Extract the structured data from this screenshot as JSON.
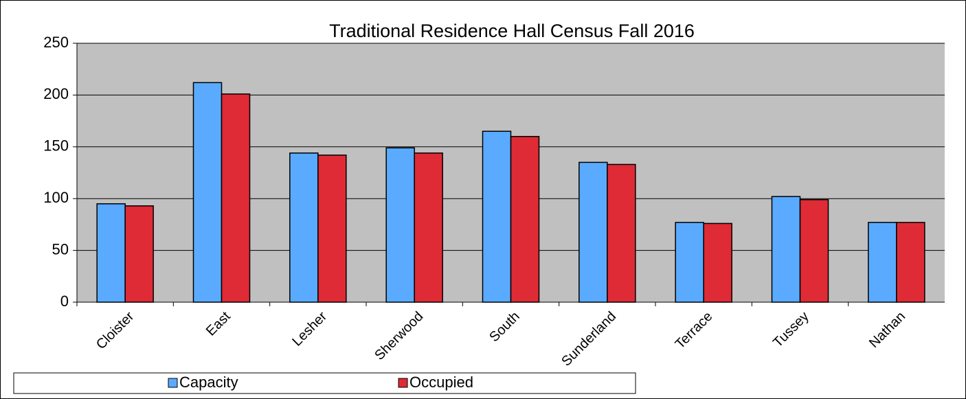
{
  "chart_data": {
    "type": "bar",
    "title": "Traditional Residence Hall Census Fall 2016",
    "categories": [
      "Cloister",
      "East",
      "Lesher",
      "Sherwood",
      "South",
      "Sunderland",
      "Terrace",
      "Tussey",
      "Nathan"
    ],
    "series": [
      {
        "name": "Capacity",
        "color": "#5aabff",
        "values": [
          95,
          212,
          144,
          149,
          165,
          135,
          77,
          102,
          77
        ]
      },
      {
        "name": "Occupied",
        "color": "#de2b35",
        "values": [
          93,
          201,
          142,
          144,
          160,
          133,
          76,
          99,
          77
        ]
      }
    ],
    "ylim": [
      0,
      250
    ],
    "yticks": [
      0,
      50,
      100,
      150,
      200,
      250
    ],
    "grid": true,
    "legend": "bottom"
  }
}
